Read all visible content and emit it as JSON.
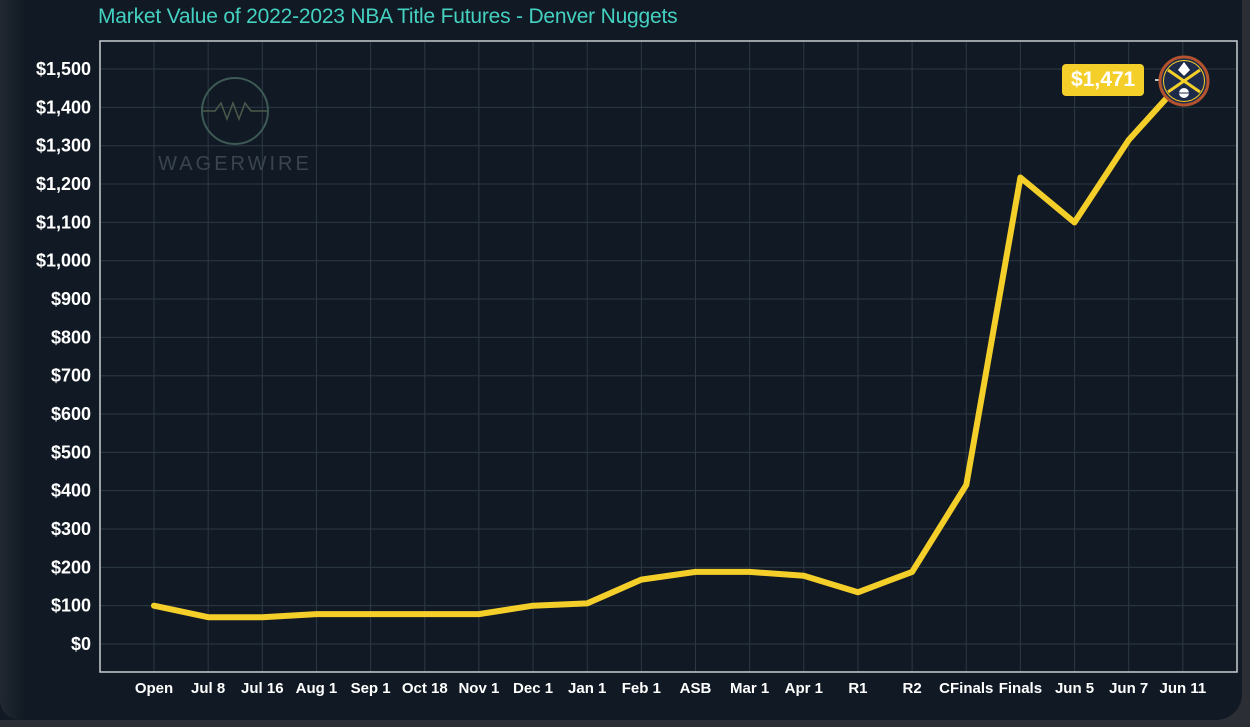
{
  "title": "Market Value of 2022-2023 NBA Title Futures - Denver Nuggets",
  "watermark": "WAGERWIRE",
  "callout": {
    "label": "$1,471",
    "icon": "denver-nuggets-logo-icon"
  },
  "colors": {
    "background": "#111a24",
    "title": "#45d1c1",
    "line": "#f5cf29",
    "grid": "#2c3845",
    "axis_border": "#c8ccd2"
  },
  "chart_data": {
    "type": "line",
    "title": "Market Value of 2022-2023 NBA Title Futures - Denver Nuggets",
    "xlabel": "",
    "ylabel": "",
    "ylim": [
      0,
      1500
    ],
    "yticks": [
      "$0",
      "$100",
      "$200",
      "$300",
      "$400",
      "$500",
      "$600",
      "$700",
      "$800",
      "$900",
      "$1,000",
      "$1,100",
      "$1,200",
      "$1,300",
      "$1,400",
      "$1,500"
    ],
    "grid": true,
    "legend": null,
    "categories": [
      "Open",
      "Jul 8",
      "Jul 16",
      "Aug 1",
      "Sep 1",
      "Oct 18",
      "Nov 1",
      "Dec 1",
      "Jan 1",
      "Feb 1",
      "ASB",
      "Mar 1",
      "Apr 1",
      "R1",
      "R2",
      "CFinals",
      "Finals",
      "Jun 5",
      "Jun 7",
      "Jun 11"
    ],
    "series": [
      {
        "name": "Denver Nuggets",
        "values": [
          100,
          70,
          70,
          78,
          78,
          78,
          78,
          100,
          106,
          168,
          188,
          188,
          178,
          135,
          188,
          415,
          1217,
          1100,
          1315,
          1471
        ]
      }
    ],
    "annotations": [
      {
        "category": "Jun 11",
        "text": "$1,471"
      }
    ]
  }
}
